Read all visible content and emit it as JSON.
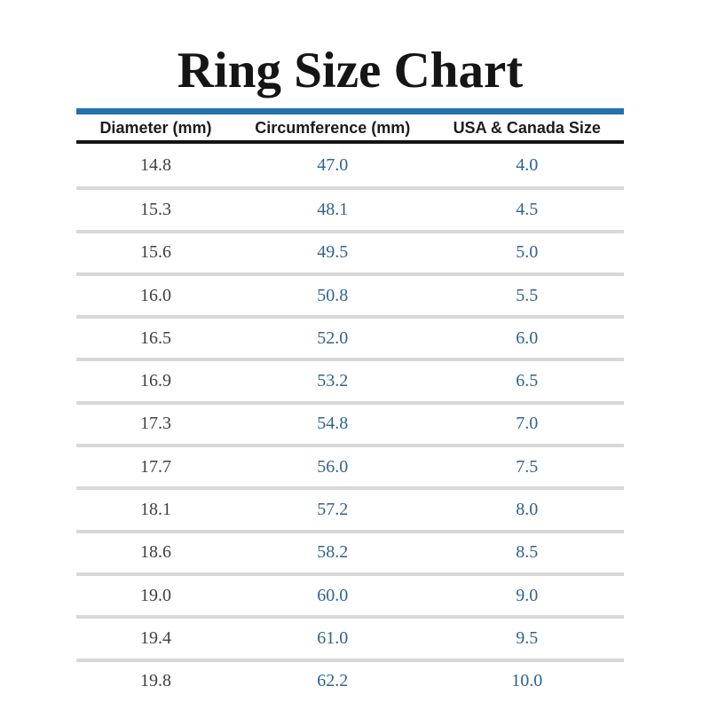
{
  "title": "Ring Size Chart",
  "table": {
    "headers": [
      "Diameter (mm)",
      "Circumference (mm)",
      "USA & Canada Size"
    ],
    "rows": [
      [
        "14.8",
        "47.0",
        "4.0"
      ],
      [
        "15.3",
        "48.1",
        "4.5"
      ],
      [
        "15.6",
        "49.5",
        "5.0"
      ],
      [
        "16.0",
        "50.8",
        "5.5"
      ],
      [
        "16.5",
        "52.0",
        "6.0"
      ],
      [
        "16.9",
        "53.2",
        "6.5"
      ],
      [
        "17.3",
        "54.8",
        "7.0"
      ],
      [
        "17.7",
        "56.0",
        "7.5"
      ],
      [
        "18.1",
        "57.2",
        "8.0"
      ],
      [
        "18.6",
        "58.2",
        "8.5"
      ],
      [
        "19.0",
        "60.0",
        "9.0"
      ],
      [
        "19.4",
        "61.0",
        "9.5"
      ],
      [
        "19.8",
        "62.2",
        "10.0"
      ]
    ]
  },
  "colors": {
    "accent_bar_blue": "#2371ad",
    "value_blue": "#2f6391",
    "diameter_text_gray": "#404040",
    "separator_gray": "#d8d8d8",
    "header_rule_black": "#141414",
    "heading_black": "#151515"
  },
  "chart_data": {
    "type": "table",
    "title": "Ring Size Chart",
    "columns": [
      "Diameter (mm)",
      "Circumference (mm)",
      "USA & Canada Size"
    ],
    "rows": [
      [
        14.8,
        47.0,
        4.0
      ],
      [
        15.3,
        48.1,
        4.5
      ],
      [
        15.6,
        49.5,
        5.0
      ],
      [
        16.0,
        50.8,
        5.5
      ],
      [
        16.5,
        52.0,
        6.0
      ],
      [
        16.9,
        53.2,
        6.5
      ],
      [
        17.3,
        54.8,
        7.0
      ],
      [
        17.7,
        56.0,
        7.5
      ],
      [
        18.1,
        57.2,
        8.0
      ],
      [
        18.6,
        58.2,
        8.5
      ],
      [
        19.0,
        60.0,
        9.0
      ],
      [
        19.4,
        61.0,
        9.5
      ],
      [
        19.8,
        62.2,
        10.0
      ]
    ]
  }
}
